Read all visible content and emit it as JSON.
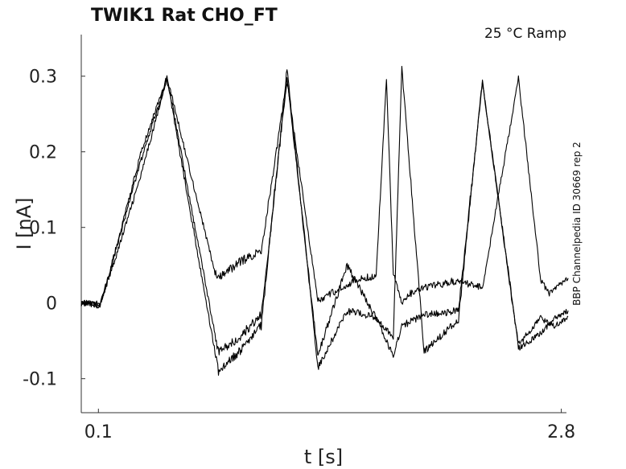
{
  "chart_data": {
    "type": "line",
    "title": "TWIK1  Rat  CHO_FT",
    "subtitle": "25 °C  Ramp",
    "side_note": "BBP Channelpedia ID 30669 rep 2",
    "xlabel": "t [s]",
    "ylabel": "I [nA]",
    "xlim": [
      0.0,
      2.83
    ],
    "ylim": [
      -0.145,
      0.355
    ],
    "x_ticks": [
      {
        "value": 0.1,
        "label": "0.1"
      },
      {
        "value": 2.8,
        "label": "2.8"
      }
    ],
    "y_ticks": [
      {
        "value": 0.3,
        "label": "0.3"
      },
      {
        "value": 0.2,
        "label": "0.2"
      },
      {
        "value": 0.1,
        "label": "0.1"
      },
      {
        "value": 0,
        "label": "0"
      },
      {
        "value": -0.1,
        "label": "-0.1"
      }
    ],
    "grid": false,
    "legend": "none",
    "series": [
      {
        "x": [
          0.0,
          0.05,
          0.09,
          0.11,
          0.2,
          0.35,
          0.5,
          0.78,
          0.8,
          0.92,
          1.05,
          1.2,
          1.38,
          1.55,
          1.65,
          1.72,
          1.78,
          1.82,
          1.87,
          1.92,
          2.0,
          2.2,
          2.34,
          2.55,
          2.68,
          2.73,
          2.76,
          2.84
        ],
        "values": [
          0.0,
          0.0,
          -0.001,
          -0.002,
          0.06,
          0.17,
          0.299,
          0.04,
          0.032,
          0.054,
          0.069,
          0.293,
          0.002,
          0.025,
          0.033,
          0.035,
          0.299,
          0.04,
          0.0,
          0.012,
          0.02,
          0.03,
          0.02,
          0.297,
          0.03,
          0.012,
          0.02,
          0.033
        ]
      },
      {
        "x": [
          0.0,
          0.05,
          0.09,
          0.11,
          0.2,
          0.35,
          0.5,
          0.8,
          0.92,
          1.05,
          1.2,
          1.38,
          1.55,
          1.72,
          1.82,
          1.87,
          2.0,
          2.2,
          2.34,
          2.55,
          2.68,
          2.76,
          2.84
        ],
        "values": [
          0.0,
          -0.001,
          -0.002,
          -0.004,
          0.07,
          0.2,
          0.299,
          -0.065,
          -0.046,
          -0.015,
          0.297,
          -0.07,
          0.05,
          -0.02,
          -0.07,
          -0.03,
          -0.016,
          -0.01,
          0.292,
          -0.055,
          -0.02,
          -0.03,
          -0.018
        ]
      },
      {
        "x": [
          0.0,
          0.05,
          0.09,
          0.11,
          0.2,
          0.35,
          0.5,
          0.8,
          0.92,
          1.05,
          1.2,
          1.38,
          1.55,
          1.72,
          1.82,
          1.87,
          2.0,
          2.2,
          2.34,
          2.55,
          2.68,
          2.76,
          2.84
        ],
        "values": [
          0.0,
          0.0,
          -0.003,
          -0.004,
          0.068,
          0.19,
          0.296,
          -0.09,
          -0.065,
          -0.03,
          0.31,
          -0.085,
          -0.01,
          -0.02,
          -0.045,
          0.312,
          -0.065,
          -0.022,
          0.293,
          -0.06,
          -0.04,
          -0.02,
          -0.01
        ]
      }
    ]
  }
}
